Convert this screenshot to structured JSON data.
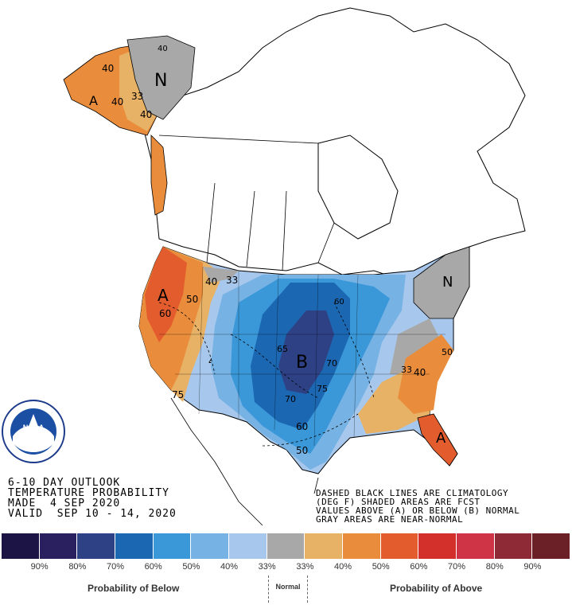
{
  "title": {
    "line1": "6-10 DAY OUTLOOK",
    "line2": "TEMPERATURE PROBABILITY",
    "line3": "MADE  4 SEP 2020",
    "line4": "VALID  SEP 10 - 14, 2020"
  },
  "notes": {
    "line1": "DASHED BLACK LINES ARE CLIMATOLOGY",
    "line2": "(DEG F) SHADED AREAS ARE FCST",
    "line3": "VALUES ABOVE (A) OR BELOW (B) NORMAL",
    "line4": "GRAY AREAS ARE NEAR-NORMAL"
  },
  "logo": {
    "text": "NOAA",
    "ring_text": "NATIONAL OCEANIC AND ATMOSPHERIC ADMINISTRATION · U.S. DEPARTMENT OF COMMERCE"
  },
  "map_labels": {
    "alaska_normal": "N",
    "alaska_c40a": "40",
    "alaska_c40b": "40",
    "alaska_c33": "33",
    "alaska_c40c": "40",
    "alaska_c40d": "40",
    "alaska_above": "A",
    "west_above": "A",
    "west_50": "50",
    "west_60": "60",
    "west_40a": "40",
    "west_33": "33",
    "west_40b": "40",
    "west_75": "75",
    "central_below": "B",
    "central_65": "65",
    "central_70a": "70",
    "central_70b": "70",
    "central_75": "75",
    "central_60a": "60",
    "central_60b": "60",
    "central_50": "50",
    "ne_normal": "N",
    "se_50": "50",
    "se_40": "40",
    "se_33": "33",
    "fl_above": "A"
  },
  "legend": {
    "colors": [
      "#1c1445",
      "#2a2060",
      "#2e4184",
      "#1b67b2",
      "#3a98d8",
      "#76b2e4",
      "#a7c8ec",
      "#a8a8a8",
      "#e8b266",
      "#e98c3b",
      "#e35c2d",
      "#d3302b",
      "#cf3446",
      "#8d2a36",
      "#6b1f26"
    ],
    "labels": [
      "90%",
      "80%",
      "70%",
      "60%",
      "50%",
      "40%",
      "33%",
      "33%",
      "40%",
      "50%",
      "60%",
      "70%",
      "80%",
      "90%"
    ],
    "below_caption": "Probability of Below",
    "normal_caption": "Normal",
    "above_caption": "Probability of Above"
  }
}
